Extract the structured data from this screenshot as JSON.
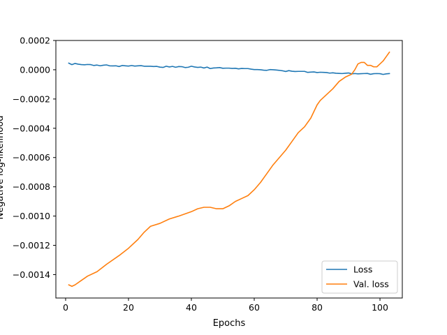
{
  "chart_data": {
    "type": "line",
    "title": "",
    "xlabel": "Epochs",
    "ylabel": "Negative log-likelihood",
    "xlim": [
      -3.1,
      107.1
    ],
    "ylim": [
      -0.00156,
      0.0002
    ],
    "xticks": [
      0,
      20,
      40,
      60,
      80,
      100
    ],
    "xtick_labels": [
      "0",
      "20",
      "40",
      "60",
      "80",
      "100"
    ],
    "yticks": [
      0.0002,
      0.0,
      -0.0002,
      -0.0004,
      -0.0006,
      -0.0008,
      -0.001,
      -0.0012,
      -0.0014
    ],
    "ytick_labels": [
      "0.0002",
      "0.0000",
      "−0.0002",
      "−0.0004",
      "−0.0006",
      "−0.0008",
      "−0.0010",
      "−0.0012",
      "−0.0014"
    ],
    "grid": false,
    "legend_position": "lower-right",
    "series": [
      {
        "name": "Loss",
        "color": "#1f77b4",
        "x": [
          1,
          2,
          3,
          4,
          5,
          6,
          7,
          8,
          9,
          10,
          11,
          12,
          13,
          14,
          15,
          16,
          17,
          18,
          19,
          20,
          21,
          22,
          23,
          24,
          25,
          26,
          27,
          28,
          29,
          30,
          31,
          32,
          33,
          34,
          35,
          36,
          37,
          38,
          39,
          40,
          41,
          42,
          43,
          44,
          45,
          46,
          47,
          48,
          49,
          50,
          51,
          52,
          53,
          54,
          55,
          56,
          57,
          58,
          59,
          60,
          61,
          62,
          63,
          64,
          65,
          66,
          67,
          68,
          69,
          70,
          71,
          72,
          73,
          74,
          75,
          76,
          77,
          78,
          79,
          80,
          81,
          82,
          83,
          84,
          85,
          86,
          87,
          88,
          89,
          90,
          91,
          92,
          93,
          94,
          95,
          96,
          97,
          98,
          99,
          100,
          101,
          102,
          103
        ],
        "y": [
          4.5e-05,
          3.5e-05,
          4.3e-05,
          3.8e-05,
          3.5e-05,
          3.4e-05,
          3.6e-05,
          3.5e-05,
          2.9e-05,
          3.2e-05,
          2.7e-05,
          3.1e-05,
          3.3e-05,
          2.7e-05,
          2.6e-05,
          2.7e-05,
          2.2e-05,
          2.9e-05,
          2.7e-05,
          2.5e-05,
          2.9e-05,
          2.5e-05,
          2.7e-05,
          2.8e-05,
          2.4e-05,
          2.4e-05,
          2.4e-05,
          2.2e-05,
          2.3e-05,
          1.8e-05,
          1.6e-05,
          2.4e-05,
          1.9e-05,
          2.3e-05,
          1.7e-05,
          2.2e-05,
          2.1e-05,
          1.5e-05,
          1.7e-05,
          2.4e-05,
          1.9e-05,
          1.6e-05,
          1.8e-05,
          1.2e-05,
          1.8e-05,
          8e-06,
          1.2e-05,
          1.3e-05,
          1.5e-05,
          1e-05,
          1.1e-05,
          1.1e-05,
          9e-06,
          1e-05,
          6e-06,
          9e-06,
          8e-06,
          8e-06,
          4e-06,
          1e-06,
          1e-06,
          0.0,
          -3e-06,
          -4e-06,
          1e-06,
          0.0,
          -2e-06,
          -4e-06,
          -7e-06,
          -1.2e-05,
          -6e-06,
          -1e-05,
          -1.2e-05,
          -1.1e-05,
          -1.1e-05,
          -1.1e-05,
          -1.8e-05,
          -1.6e-05,
          -1.5e-05,
          -1.9e-05,
          -1.7e-05,
          -1.8e-05,
          -1.9e-05,
          -2.3e-05,
          -2.1e-05,
          -2.4e-05,
          -2.5e-05,
          -2.6e-05,
          -2.4e-05,
          -2.2e-05,
          -2.8e-05,
          -2.6e-05,
          -2.8e-05,
          -2.7e-05,
          -2.6e-05,
          -2.5e-05,
          -3.1e-05,
          -2.7e-05,
          -2.6e-05,
          -2.7e-05,
          -3.2e-05,
          -2.8e-05,
          -2.6e-05
        ]
      },
      {
        "name": "Val. loss",
        "color": "#ff7f0e",
        "x": [
          1,
          2,
          3,
          5,
          7,
          10,
          13,
          17,
          20,
          23,
          25,
          27,
          30,
          33,
          36,
          40,
          42,
          44,
          46,
          48,
          50,
          52,
          54,
          56,
          58,
          60,
          62,
          64,
          66,
          68,
          70,
          72,
          74,
          76,
          78,
          80,
          81,
          83,
          85,
          87,
          89,
          91,
          92,
          93,
          94,
          95,
          96,
          97,
          98,
          99,
          100,
          101,
          102,
          103
        ],
        "y": [
          -0.00147,
          -0.00148,
          -0.00147,
          -0.00144,
          -0.00141,
          -0.00138,
          -0.00133,
          -0.00127,
          -0.00122,
          -0.00116,
          -0.00111,
          -0.00107,
          -0.00105,
          -0.00102,
          -0.001,
          -0.00097,
          -0.00095,
          -0.00094,
          -0.00094,
          -0.00095,
          -0.00095,
          -0.00093,
          -0.0009,
          -0.00088,
          -0.00086,
          -0.00082,
          -0.00077,
          -0.00071,
          -0.00065,
          -0.0006,
          -0.00055,
          -0.00049,
          -0.00043,
          -0.00039,
          -0.00033,
          -0.00024,
          -0.00021,
          -0.00017,
          -0.00013,
          -8e-05,
          -5e-05,
          -3e-05,
          0.0,
          4e-05,
          5e-05,
          5e-05,
          3e-05,
          3e-05,
          2e-05,
          2e-05,
          4e-05,
          6e-05,
          9e-05,
          0.00012
        ]
      }
    ]
  }
}
